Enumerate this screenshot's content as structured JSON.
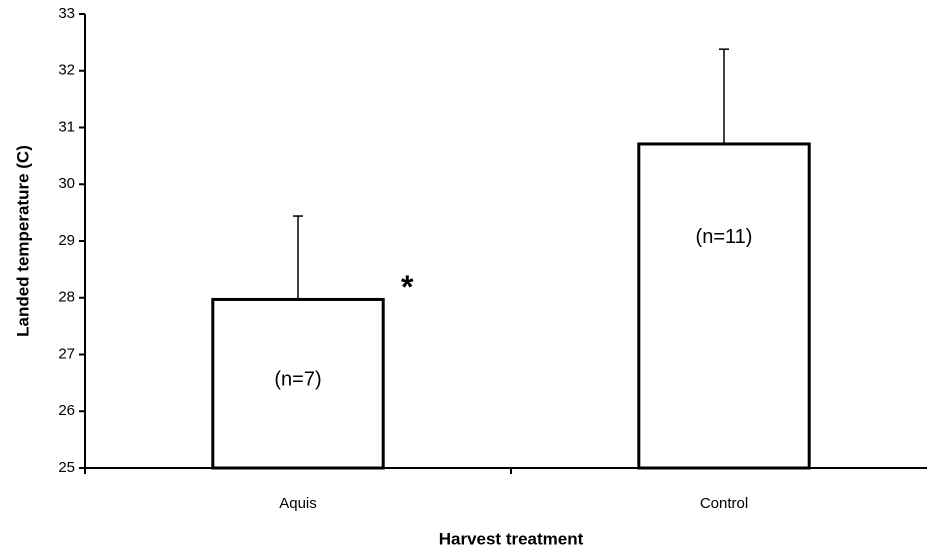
{
  "chart_data": {
    "type": "bar",
    "y_label": "Landed temperature (C)",
    "x_label": "Harvest treatment",
    "categories": [
      "Aquis",
      "Control"
    ],
    "values": [
      27.97,
      30.71
    ],
    "errors": [
      1.47,
      1.67
    ],
    "sample_sizes": [
      "(n=7)",
      "(n=11)"
    ],
    "significance_marks": [
      "*",
      null
    ],
    "color": "#ffffff",
    "edge_color": "#000000",
    "ylim": [
      25,
      33
    ],
    "yticks": [
      25,
      26,
      27,
      28,
      29,
      30,
      31,
      32,
      33
    ],
    "grid": false
  }
}
